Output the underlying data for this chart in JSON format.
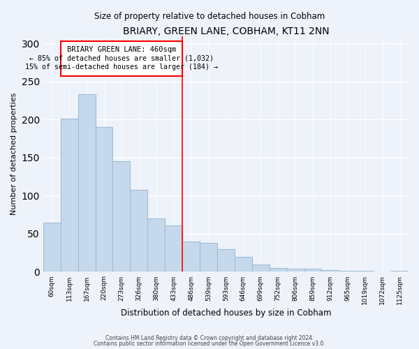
{
  "title": "BRIARY, GREEN LANE, COBHAM, KT11 2NN",
  "subtitle": "Size of property relative to detached houses in Cobham",
  "xlabel": "Distribution of detached houses by size in Cobham",
  "ylabel": "Number of detached properties",
  "bar_labels": [
    "60sqm",
    "113sqm",
    "167sqm",
    "220sqm",
    "273sqm",
    "326sqm",
    "380sqm",
    "433sqm",
    "486sqm",
    "539sqm",
    "593sqm",
    "646sqm",
    "699sqm",
    "752sqm",
    "806sqm",
    "859sqm",
    "912sqm",
    "965sqm",
    "1019sqm",
    "1072sqm",
    "1125sqm"
  ],
  "bar_values": [
    65,
    201,
    233,
    190,
    145,
    108,
    70,
    61,
    40,
    38,
    30,
    20,
    10,
    5,
    4,
    4,
    2,
    1,
    1,
    0,
    1
  ],
  "bar_color": "#c6d9ec",
  "bar_edge_color": "#a0bcd4",
  "ylim": [
    0,
    310
  ],
  "yticks": [
    0,
    50,
    100,
    150,
    200,
    250,
    300
  ],
  "property_line_label": "BRIARY GREEN LANE: 460sqm",
  "annotation_line1": "← 85% of detached houses are smaller (1,032)",
  "annotation_line2": "15% of semi-detached houses are larger (184) →",
  "footnote1": "Contains HM Land Registry data © Crown copyright and database right 2024.",
  "footnote2": "Contains public sector information licensed under the Open Government Licence v3.0.",
  "bg_color": "#eef2fa"
}
